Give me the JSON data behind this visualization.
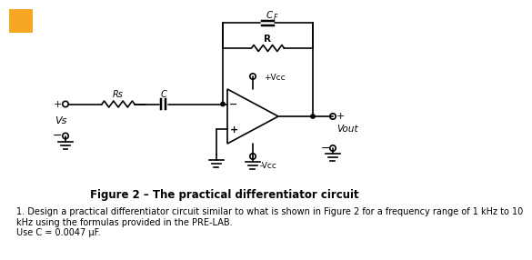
{
  "bg_color": "#ffffff",
  "title": "Figure 2 – The practical differentiator circuit",
  "title_fontsize": 8.5,
  "body_text": "1. Design a practical differentiator circuit similar to what is shown in Figure 2 for a frequency range of 1 kHz to 10\nkHz using the formulas provided in the PRE-LAB.\nUse C = 0.0047 µF.",
  "body_fontsize": 7.0,
  "label_CF": "C",
  "label_CF_sub": "F",
  "label_R": "R",
  "label_Rs": "Rs",
  "label_C": "C",
  "label_Vs": "Vs",
  "label_Vout": "Vout",
  "label_plus_Vcc": "+Vcc",
  "label_minus_Vcc": "-Vcc",
  "corner_color": "#f5a623",
  "line_color": "#000000",
  "lw": 1.2
}
